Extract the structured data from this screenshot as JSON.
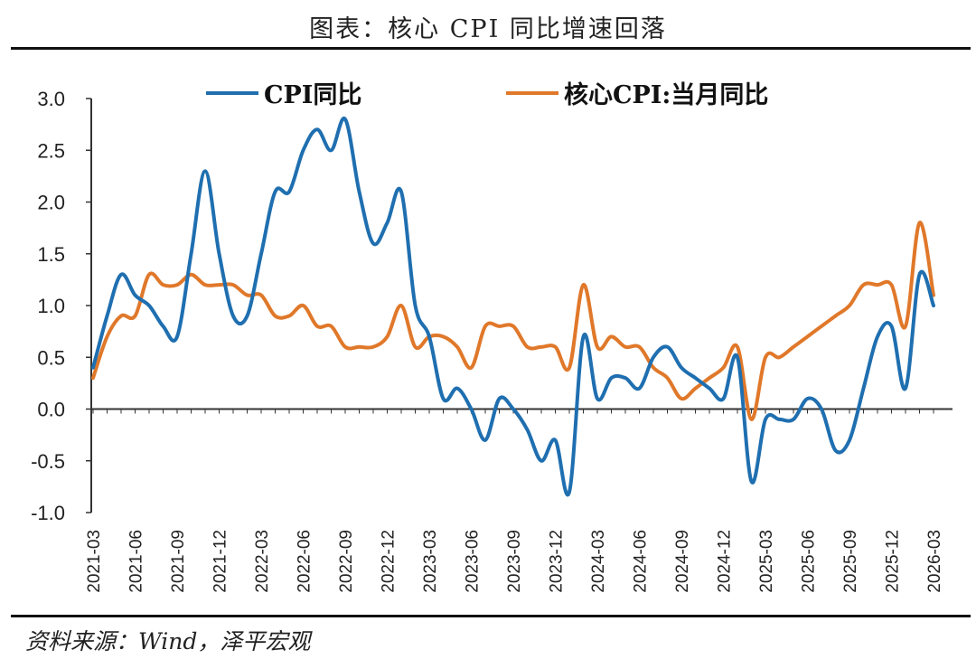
{
  "page": {
    "title": "图表：核心 CPI 同比增速回落",
    "source": "资料来源：Wind，泽平宏观"
  },
  "chart_data": {
    "type": "line",
    "title": "图表：核心 CPI 同比增速回落",
    "xlabel": "",
    "ylabel": "",
    "ylim": [
      -1.0,
      3.0
    ],
    "yticks": [
      "3.0",
      "2.5",
      "2.0",
      "1.5",
      "1.0",
      "0.5",
      "0.0",
      "-0.5",
      "-1.0"
    ],
    "x_tick_labels": [
      "2021-03",
      "2021-06",
      "2021-09",
      "2021-12",
      "2022-03",
      "2022-06",
      "2022-09",
      "2022-12",
      "2023-03",
      "2023-06",
      "2023-09",
      "2023-12",
      "2024-03",
      "2024-06",
      "2024-09",
      "2024-12",
      "2025-03",
      "2025-06",
      "2025-09",
      "2025-12",
      "2026-03"
    ],
    "x_start": "2021-03",
    "legend_position": "top",
    "series": [
      {
        "name": "CPI同比",
        "color": "#1f6fb0",
        "values": [
          0.4,
          0.9,
          1.3,
          1.1,
          1.0,
          0.8,
          0.7,
          1.5,
          2.3,
          1.5,
          0.9,
          0.9,
          1.5,
          2.1,
          2.1,
          2.5,
          2.7,
          2.5,
          2.8,
          2.1,
          1.6,
          1.8,
          2.1,
          1.0,
          0.7,
          0.1,
          0.2,
          0.0,
          -0.3,
          0.1,
          0.0,
          -0.2,
          -0.5,
          -0.3,
          -0.8,
          0.7,
          0.1,
          0.3,
          0.3,
          0.2,
          0.5,
          0.6,
          0.4,
          0.3,
          0.2,
          0.1,
          0.5,
          -0.7,
          -0.1,
          -0.1,
          -0.1,
          0.1,
          0.0,
          -0.4,
          -0.3,
          0.2,
          0.7,
          0.8,
          0.2,
          1.3,
          1.0
        ]
      },
      {
        "name": "核心CPI:当月同比",
        "color": "#e0782a",
        "values": [
          0.3,
          0.7,
          0.9,
          0.9,
          1.3,
          1.2,
          1.2,
          1.3,
          1.2,
          1.2,
          1.2,
          1.1,
          1.1,
          0.9,
          0.9,
          1.0,
          0.8,
          0.8,
          0.6,
          0.6,
          0.6,
          0.7,
          1.0,
          0.6,
          0.7,
          0.7,
          0.6,
          0.4,
          0.8,
          0.8,
          0.8,
          0.6,
          0.6,
          0.6,
          0.4,
          1.2,
          0.6,
          0.7,
          0.6,
          0.6,
          0.4,
          0.3,
          0.1,
          0.2,
          0.3,
          0.4,
          0.6,
          -0.1,
          0.5,
          0.5,
          0.6,
          0.7,
          0.8,
          0.9,
          1.0,
          1.2,
          1.2,
          1.2,
          0.8,
          1.8,
          1.1
        ]
      }
    ]
  }
}
